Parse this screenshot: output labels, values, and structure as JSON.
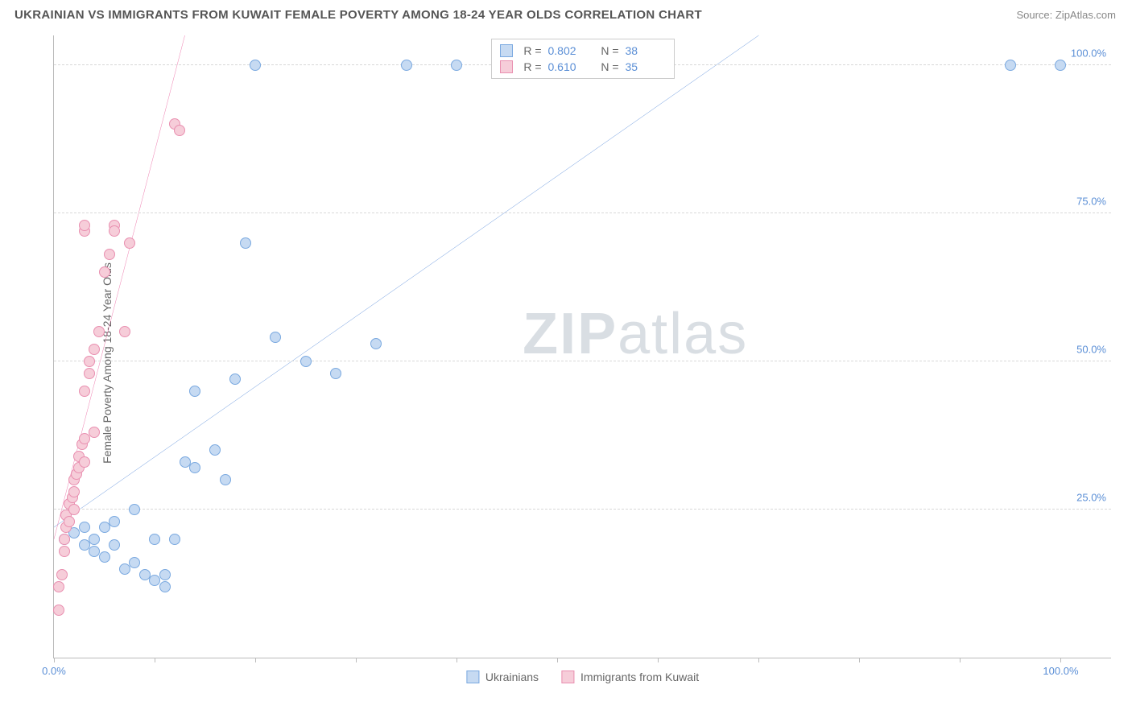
{
  "header": {
    "title": "UKRAINIAN VS IMMIGRANTS FROM KUWAIT FEMALE POVERTY AMONG 18-24 YEAR OLDS CORRELATION CHART",
    "source_prefix": "Source: ",
    "source_name": "ZipAtlas.com"
  },
  "chart": {
    "type": "scatter",
    "ylabel": "Female Poverty Among 18-24 Year Olds",
    "xlim": [
      0,
      105
    ],
    "ylim": [
      0,
      105
    ],
    "xtick_positions": [
      0,
      10,
      20,
      30,
      40,
      50,
      60,
      70,
      80,
      90,
      100
    ],
    "xtick_labels": {
      "0": "0.0%",
      "100": "100.0%"
    },
    "ytick_positions": [
      25,
      50,
      75,
      100
    ],
    "ytick_labels": [
      "25.0%",
      "50.0%",
      "75.0%",
      "100.0%"
    ],
    "grid_color": "#d8d8d8",
    "axis_color": "#bbbbbb",
    "tick_label_color": "#5b8fd6",
    "background_color": "#ffffff",
    "marker_radius": 7,
    "marker_stroke_width": 1.5,
    "trend_line_width": 2,
    "watermark": "ZIPatlas",
    "series": [
      {
        "name": "Ukrainians",
        "fill_color": "#c6daf2",
        "stroke_color": "#7aa9e0",
        "line_color": "#2f6fd0",
        "R": "0.802",
        "N": "38",
        "trend": {
          "x1": 0,
          "y1": 22,
          "x2": 70,
          "y2": 105
        },
        "points": [
          [
            1,
            20
          ],
          [
            2,
            21
          ],
          [
            3,
            19
          ],
          [
            3,
            22
          ],
          [
            4,
            18
          ],
          [
            4,
            20
          ],
          [
            5,
            22
          ],
          [
            5,
            17
          ],
          [
            6,
            19
          ],
          [
            6,
            23
          ],
          [
            7,
            15
          ],
          [
            8,
            16
          ],
          [
            8,
            25
          ],
          [
            9,
            14
          ],
          [
            10,
            13
          ],
          [
            10,
            20
          ],
          [
            11,
            12
          ],
          [
            11,
            14
          ],
          [
            12,
            20
          ],
          [
            13,
            33
          ],
          [
            14,
            45
          ],
          [
            14,
            32
          ],
          [
            16,
            35
          ],
          [
            17,
            30
          ],
          [
            18,
            47
          ],
          [
            19,
            70
          ],
          [
            20,
            100
          ],
          [
            22,
            54
          ],
          [
            25,
            50
          ],
          [
            28,
            48
          ],
          [
            32,
            53
          ],
          [
            35,
            100
          ],
          [
            40,
            100
          ],
          [
            48,
            100
          ],
          [
            49,
            100
          ],
          [
            50,
            100
          ],
          [
            95,
            100
          ],
          [
            100,
            100
          ]
        ]
      },
      {
        "name": "Immigrants from Kuwait",
        "fill_color": "#f6cdd9",
        "stroke_color": "#e98fb0",
        "line_color": "#e84a8f",
        "R": "0.610",
        "N": "35",
        "trend": {
          "x1": 0,
          "y1": 20,
          "x2": 13,
          "y2": 105
        },
        "points": [
          [
            0.5,
            8
          ],
          [
            0.5,
            12
          ],
          [
            0.8,
            14
          ],
          [
            1,
            18
          ],
          [
            1,
            20
          ],
          [
            1.2,
            22
          ],
          [
            1.2,
            24
          ],
          [
            1.5,
            23
          ],
          [
            1.5,
            26
          ],
          [
            1.8,
            27
          ],
          [
            2,
            25
          ],
          [
            2,
            28
          ],
          [
            2,
            30
          ],
          [
            2.2,
            31
          ],
          [
            2.5,
            32
          ],
          [
            2.5,
            34
          ],
          [
            2.8,
            36
          ],
          [
            3,
            33
          ],
          [
            3,
            37
          ],
          [
            3,
            45
          ],
          [
            3.5,
            48
          ],
          [
            3.5,
            50
          ],
          [
            4,
            38
          ],
          [
            4,
            52
          ],
          [
            4.5,
            55
          ],
          [
            5,
            65
          ],
          [
            5.5,
            68
          ],
          [
            6,
            73
          ],
          [
            6,
            72
          ],
          [
            7,
            55
          ],
          [
            7.5,
            70
          ],
          [
            12,
            90
          ],
          [
            12.5,
            89
          ],
          [
            3,
            72
          ],
          [
            3,
            73
          ]
        ]
      }
    ],
    "legend_bottom": [
      {
        "label": "Ukrainians",
        "swatch_fill": "#c6daf2",
        "swatch_border": "#7aa9e0"
      },
      {
        "label": "Immigrants from Kuwait",
        "swatch_fill": "#f6cdd9",
        "swatch_border": "#e98fb0"
      }
    ]
  }
}
